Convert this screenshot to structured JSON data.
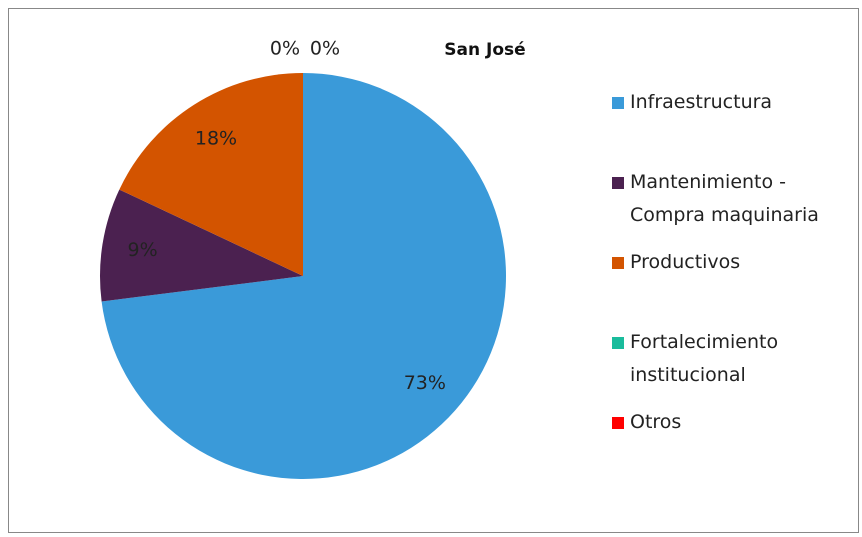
{
  "chart_data": {
    "type": "pie",
    "title": "San José",
    "categories": [
      "Infraestructura",
      "Mantenimiento - Compra maquinaria",
      "Productivos",
      "Fortalecimiento institucional",
      "Otros"
    ],
    "values": [
      73,
      9,
      18,
      0,
      0
    ],
    "value_labels": [
      "73%",
      "9%",
      "18%",
      "0%",
      "0%"
    ],
    "colors": [
      "#3a9ad9",
      "#4b2150",
      "#d35400",
      "#1abc9c",
      "#ff0000"
    ],
    "legend": "right"
  }
}
